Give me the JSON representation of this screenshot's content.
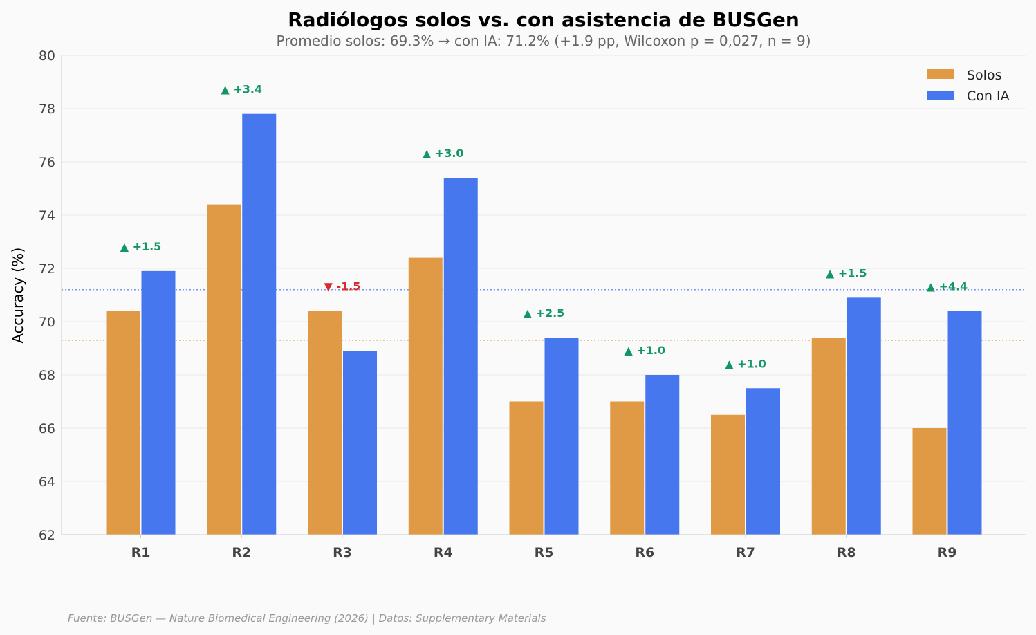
{
  "chart_data": {
    "type": "bar",
    "title": "Radiólogos solos vs. con asistencia de BUSGen",
    "subtitle": "Promedio solos: 69.3% → con IA: 71.2% (+1.9 pp, Wilcoxon p = 0,027, n = 9)",
    "xlabel": "",
    "ylabel": "Accuracy (%)",
    "ylim": [
      62,
      80
    ],
    "yticks": [
      62,
      64,
      66,
      68,
      70,
      72,
      74,
      76,
      78,
      80
    ],
    "grid": true,
    "legend_position": "top-right",
    "categories": [
      "R1",
      "R2",
      "R3",
      "R4",
      "R5",
      "R6",
      "R7",
      "R8",
      "R9"
    ],
    "series": [
      {
        "name": "Solos",
        "color": "#e09a45",
        "values": [
          70.4,
          74.4,
          70.4,
          72.4,
          67.0,
          67.0,
          66.5,
          69.4,
          66.0
        ]
      },
      {
        "name": "Con IA",
        "color": "#4677ee",
        "values": [
          71.9,
          77.8,
          68.9,
          75.4,
          69.4,
          68.0,
          67.5,
          70.9,
          70.4
        ]
      }
    ],
    "delta_labels": [
      "▲ +1.5",
      "▲ +3.4",
      "▼ -1.5",
      "▲ +3.0",
      "▲ +2.5",
      "▲ +1.0",
      "▲ +1.0",
      "▲ +1.5",
      "▲ +4.4"
    ],
    "delta_colors": {
      "up": "#139663",
      "down": "#d62c2c"
    },
    "reference_lines": [
      {
        "name": "promedio-solos",
        "value": 69.3,
        "color": "#e09a45"
      },
      {
        "name": "promedio-con-ia",
        "value": 71.2,
        "color": "#4677ee"
      }
    ],
    "source_note": "Fuente: BUSGen — Nature Biomedical Engineering (2026) | Datos: Supplementary Materials"
  }
}
